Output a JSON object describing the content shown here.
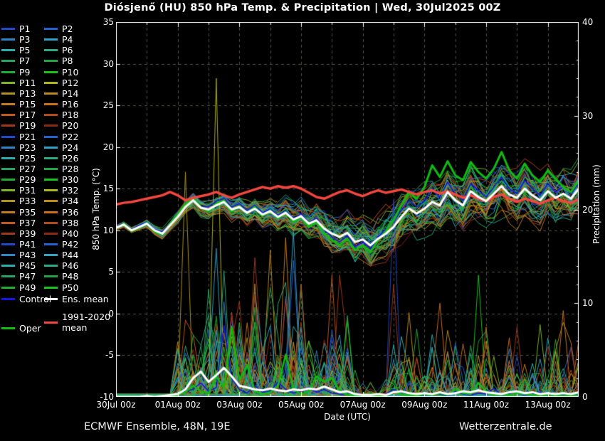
{
  "header": {
    "title": "Diósjenő  (HU)  850 hPa Temp. & Precipitation | Wed, 30Jul2025 00Z"
  },
  "footer": {
    "left": "ECMWF Ensemble, 48N, 19E",
    "right": "Wetterzentrale.de"
  },
  "axes": {
    "left_label": "850 hPa Temp. (°C)",
    "right_label": "Precipitation (mm)",
    "x_label": "Date (UTC)",
    "left_ticks": [
      35,
      30,
      25,
      20,
      15,
      10,
      5,
      0,
      -5,
      -10
    ],
    "right_ticks": [
      40,
      30,
      20,
      10,
      0
    ],
    "x_major_ticks": [
      {
        "label": "30Jul 00z",
        "day": 0
      },
      {
        "label": "01Aug 00z",
        "day": 2
      },
      {
        "label": "03Aug 00z",
        "day": 4
      },
      {
        "label": "05Aug 00z",
        "day": 6
      },
      {
        "label": "07Aug 00z",
        "day": 8
      },
      {
        "label": "09Aug 00z",
        "day": 10
      },
      {
        "label": "11Aug 00z",
        "day": 12
      },
      {
        "label": "13Aug 00z",
        "day": 14
      }
    ],
    "temp_range": [
      -10,
      35
    ],
    "precip_range": [
      0,
      40
    ],
    "days_range": [
      0,
      15
    ]
  },
  "legend": {
    "members": [
      "P1",
      "P2",
      "P3",
      "P4",
      "P5",
      "P6",
      "P7",
      "P8",
      "P9",
      "P10",
      "P11",
      "P12",
      "P13",
      "P14",
      "P15",
      "P16",
      "P17",
      "P18",
      "P19",
      "P20",
      "P21",
      "P22",
      "P23",
      "P24",
      "P25",
      "P26",
      "P27",
      "P28",
      "P29",
      "P30",
      "P31",
      "P32",
      "P33",
      "P34",
      "P35",
      "P36",
      "P37",
      "P38",
      "P39",
      "P40",
      "P41",
      "P42",
      "P43",
      "P44",
      "P45",
      "P46",
      "P47",
      "P48",
      "P49",
      "P50"
    ],
    "special": [
      {
        "label": "Control",
        "color": "#1515dd"
      },
      {
        "label": "Ens. mean",
        "color": "#ffffff"
      },
      {
        "label_line1": "1991-2020",
        "label_line2": "mean",
        "color": "#f2473f"
      },
      {
        "label": "Oper",
        "color": "#11bb11"
      }
    ]
  },
  "colors": {
    "background": "#000000",
    "grid": "#53534a",
    "axis": "#ffffff",
    "ens_mean": "#ffffff",
    "climate_mean": "#f2473f",
    "oper": "#11bb11",
    "control": "#1515dd",
    "member_palette": [
      "#2048c8",
      "#2860d0",
      "#2f86c4",
      "#31a2c8",
      "#2aaeae",
      "#2bac82",
      "#2aa55e",
      "#23a447",
      "#1fae2f",
      "#19c319",
      "#7fb722",
      "#b5b51f",
      "#b1941d",
      "#bf8a1e",
      "#c67b1e",
      "#c96f1d",
      "#c25a1d",
      "#b4491c",
      "#9e3a18",
      "#8c2a14"
    ]
  },
  "chart_data": {
    "type": "line",
    "title": "Diósjenő  (HU)  850 hPa Temp. & Precipitation | Wed, 30Jul2025 00Z",
    "xlabel": "Date (UTC)",
    "ylabel_left": "850 hPa Temp. (°C)",
    "ylabel_right": "Precipitation (mm)",
    "x_start_label": "30Jul 00z",
    "time_step_days": 0.25,
    "num_steps": 61,
    "temp_ylim": [
      -10,
      35
    ],
    "precip_ylim": [
      0,
      40
    ],
    "grid": "dashed",
    "legend_position": "left",
    "series": [
      {
        "name": "Ens. mean temperature",
        "axis": "left",
        "color": "#ffffff",
        "width": 3,
        "values": [
          10.3,
          10.7,
          10.0,
          10.4,
          10.8,
          10.0,
          9.6,
          10.6,
          11.6,
          12.8,
          13.6,
          12.7,
          12.5,
          13.0,
          13.4,
          12.5,
          12.8,
          12.1,
          12.6,
          11.9,
          12.3,
          11.6,
          12.1,
          11.3,
          11.7,
          10.8,
          11.2,
          10.2,
          9.6,
          9.2,
          9.7,
          8.6,
          8.9,
          8.2,
          9.0,
          9.6,
          10.4,
          11.6,
          12.6,
          12.0,
          12.6,
          13.4,
          13.0,
          14.6,
          13.6,
          13.0,
          14.7,
          14.0,
          13.5,
          14.4,
          15.3,
          14.3,
          13.9,
          15.0,
          14.2,
          13.6,
          14.7,
          13.9,
          14.4,
          13.8,
          15.0
        ]
      },
      {
        "name": "1991-2020 mean temperature",
        "axis": "left",
        "color": "#f2473f",
        "width": 3.5,
        "values": [
          13.1,
          13.3,
          13.4,
          13.6,
          13.8,
          14.0,
          14.2,
          14.6,
          14.2,
          13.6,
          13.9,
          14.1,
          14.3,
          14.6,
          14.2,
          13.9,
          14.3,
          14.6,
          14.9,
          15.2,
          15.0,
          15.3,
          15.1,
          15.3,
          15.0,
          14.5,
          14.0,
          13.8,
          14.2,
          14.6,
          14.8,
          14.4,
          14.1,
          14.5,
          14.8,
          14.5,
          14.7,
          14.9,
          14.6,
          14.3,
          14.6,
          14.8,
          14.4,
          14.7,
          14.3,
          13.9,
          14.2,
          13.8,
          13.5,
          14.0,
          14.3,
          13.8,
          13.4,
          13.8,
          13.5,
          13.2,
          13.6,
          13.9,
          13.5,
          13.3,
          13.7
        ]
      },
      {
        "name": "Oper temperature",
        "axis": "left",
        "color": "#11bb11",
        "width": 3,
        "values": [
          10.2,
          10.8,
          9.9,
          10.3,
          10.9,
          9.8,
          9.5,
          10.8,
          11.9,
          13.1,
          13.9,
          12.8,
          12.3,
          13.2,
          13.6,
          12.3,
          12.9,
          12.0,
          12.8,
          11.7,
          12.4,
          11.4,
          12.2,
          11.0,
          11.6,
          10.4,
          11.0,
          9.6,
          8.8,
          8.2,
          9.0,
          7.6,
          8.2,
          7.4,
          8.8,
          9.9,
          11.2,
          13.0,
          14.6,
          13.8,
          15.2,
          17.8,
          16.4,
          18.3,
          16.6,
          16.0,
          18.2,
          17.0,
          16.2,
          17.4,
          19.4,
          17.2,
          16.2,
          18.0,
          16.6,
          15.8,
          17.2,
          16.2,
          15.2,
          14.6,
          16.0
        ]
      },
      {
        "name": "Control temperature",
        "axis": "left",
        "color": "#1515dd",
        "width": 1.6,
        "values": [
          10.4,
          10.9,
          10.1,
          10.6,
          11.0,
          10.1,
          9.8,
          10.9,
          11.9,
          13.2,
          13.9,
          12.9,
          12.8,
          13.5,
          13.8,
          12.8,
          13.2,
          12.4,
          13.0,
          12.1,
          12.6,
          11.8,
          12.4,
          11.4,
          12.0,
          10.9,
          11.5,
          10.1,
          9.2,
          8.6,
          9.4,
          8.0,
          8.6,
          7.8,
          9.2,
          10.1,
          11.0,
          12.4,
          13.6,
          12.8,
          13.5,
          14.8,
          14.0,
          15.8,
          14.4,
          13.6,
          15.6,
          14.8,
          14.0,
          15.2,
          16.4,
          15.0,
          14.4,
          16.0,
          15.0,
          14.2,
          15.6,
          14.6,
          15.2,
          14.4,
          15.6
        ]
      },
      {
        "name": "Ens. mean precipitation",
        "axis": "right",
        "color": "#ffffff",
        "width": 3,
        "values": [
          0,
          0,
          0,
          0,
          0.1,
          0,
          0.1,
          0.2,
          0.3,
          0.8,
          2.0,
          2.7,
          1.6,
          2.3,
          3.1,
          2.2,
          1.2,
          1.0,
          0.8,
          0.7,
          0.9,
          0.7,
          0.6,
          0.8,
          0.7,
          0.9,
          0.8,
          1.1,
          0.8,
          0.5,
          0.6,
          0.3,
          0.2,
          0.2,
          0.3,
          0.2,
          0.5,
          0.6,
          0.4,
          0.3,
          0.4,
          0.3,
          0.5,
          0.3,
          0.4,
          0.6,
          0.5,
          0.7,
          0.5,
          0.4,
          0.3,
          0.5,
          0.6,
          0.4,
          0.5,
          0.3,
          0.4,
          0.3,
          0.4,
          0.3,
          0.5
        ]
      },
      {
        "name": "Oper precipitation",
        "axis": "right",
        "color": "#11bb11",
        "width": 2.5,
        "values": [
          0,
          0,
          0,
          0,
          0,
          0,
          0,
          0,
          0.2,
          0.5,
          1.2,
          0.6,
          0.4,
          2.2,
          1.0,
          7.4,
          1.8,
          3.4,
          0.6,
          0.3,
          0.5,
          1.2,
          4.5,
          0.8,
          0.3,
          0.6,
          2.2,
          1.6,
          2.0,
          0.6,
          0.2,
          0.1,
          0.1,
          0.1,
          0.1,
          0.1,
          0.6,
          0.3,
          0.2,
          0.1,
          0.3,
          0.2,
          0.4,
          0.2,
          0.8,
          0.4,
          0.3,
          1.5,
          0.5,
          0.2,
          0.3,
          0.2,
          0.4,
          0.3,
          0.2,
          0.1,
          0.3,
          0.2,
          0.1,
          0.2,
          0.4
        ]
      },
      {
        "name": "Control precipitation",
        "axis": "right",
        "color": "#1515dd",
        "width": 1.6,
        "values": [
          0,
          0,
          0,
          0,
          0,
          0,
          0,
          0,
          0.3,
          0.6,
          0.8,
          1.5,
          0.6,
          1.0,
          7.6,
          2.0,
          0.8,
          0.4,
          1.2,
          0.5,
          0.6,
          1.6,
          0.8,
          0.4,
          0.6,
          1.0,
          0.5,
          0.8,
          0.4,
          0.3,
          0.2,
          0.1,
          0.1,
          0.2,
          0.1,
          0.3,
          0.8,
          0.4,
          0.2,
          0.1,
          0.2,
          0.4,
          0.3,
          0.1,
          0.6,
          0.3,
          0.2,
          0.4,
          0.3,
          0.9,
          0.2,
          0.3,
          0.4,
          0.2,
          0.3,
          0.5,
          0.2,
          0.3,
          0.2,
          0.4,
          0.3
        ]
      }
    ],
    "members_gen": {
      "count": 50,
      "seed": 42,
      "spread": [
        0.25,
        0.27,
        0.3,
        0.35,
        0.4,
        0.45,
        0.5,
        0.55,
        0.6,
        0.7,
        0.8,
        0.85,
        0.9,
        0.95,
        1.0,
        1.1,
        1.2,
        1.25,
        1.3,
        1.4,
        1.5,
        1.55,
        1.6,
        1.7,
        1.8,
        1.9,
        2.0,
        2.1,
        2.2,
        2.25,
        2.3,
        2.35,
        2.4,
        2.45,
        2.5,
        2.55,
        2.6,
        2.62,
        2.65,
        2.67,
        2.7,
        2.7,
        2.7,
        2.7,
        2.7,
        2.7,
        2.7,
        2.7,
        2.7,
        2.7,
        2.7,
        2.7,
        2.7,
        2.7,
        2.7,
        2.7,
        2.7,
        2.7,
        2.7,
        2.7,
        2.7
      ],
      "wet_prob": [
        0,
        0,
        0,
        0,
        0,
        0,
        0,
        0,
        0.55,
        0.55,
        0.55,
        0.55,
        0.55,
        0.55,
        0.55,
        0.55,
        0.55,
        0.55,
        0.55,
        0.55,
        0.55,
        0.55,
        0.55,
        0.55,
        0.55,
        0.55,
        0.55,
        0.55,
        0.55,
        0.55,
        0.55,
        0.15,
        0.15,
        0.15,
        0.15,
        0.15,
        0.3,
        0.3,
        0.3,
        0.3,
        0.3,
        0.3,
        0.3,
        0.3,
        0.3,
        0.3,
        0.3,
        0.3,
        0.3,
        0.3,
        0.3,
        0.3,
        0.3,
        0.3,
        0.3,
        0.3,
        0.3,
        0.3,
        0.3,
        0.3,
        0.3
      ],
      "precip_scale": [
        0,
        0,
        0,
        0,
        0,
        0,
        0,
        0,
        2.5,
        2.5,
        2.5,
        2.5,
        4,
        4,
        4,
        4,
        4,
        4,
        4,
        3,
        3,
        3,
        3,
        3,
        3,
        2.5,
        2.5,
        2.5,
        2.5,
        2.5,
        2.5,
        0.8,
        0.8,
        0.8,
        0.8,
        0.8,
        1.8,
        1.8,
        1.8,
        1.8,
        1.8,
        1.8,
        1.8,
        1.8,
        1.8,
        1.8,
        1.8,
        1.8,
        1.8,
        1.8,
        1.8,
        1.8,
        1.8,
        1.8,
        1.8,
        1.8,
        1.8,
        1.8,
        1.8,
        1.8,
        1.8
      ],
      "forced_spikes": [
        {
          "m": 11,
          "i": 13,
          "mm": 34
        },
        {
          "m": 12,
          "i": 9,
          "mm": 24
        },
        {
          "m": 21,
          "i": 18,
          "mm": 11
        },
        {
          "m": 14,
          "i": 22,
          "mm": 17
        },
        {
          "m": 37,
          "i": 24,
          "mm": 12
        },
        {
          "m": 16,
          "i": 28,
          "mm": 13
        },
        {
          "m": 20,
          "i": 36,
          "mm": 21
        },
        {
          "m": 38,
          "i": 36,
          "mm": 12
        },
        {
          "m": 13,
          "i": 38,
          "mm": 9
        },
        {
          "m": 15,
          "i": 42,
          "mm": 10
        },
        {
          "m": 9,
          "i": 47,
          "mm": 13
        },
        {
          "m": 18,
          "i": 52,
          "mm": 7.5
        },
        {
          "m": 36,
          "i": 60,
          "mm": 6
        }
      ]
    }
  }
}
